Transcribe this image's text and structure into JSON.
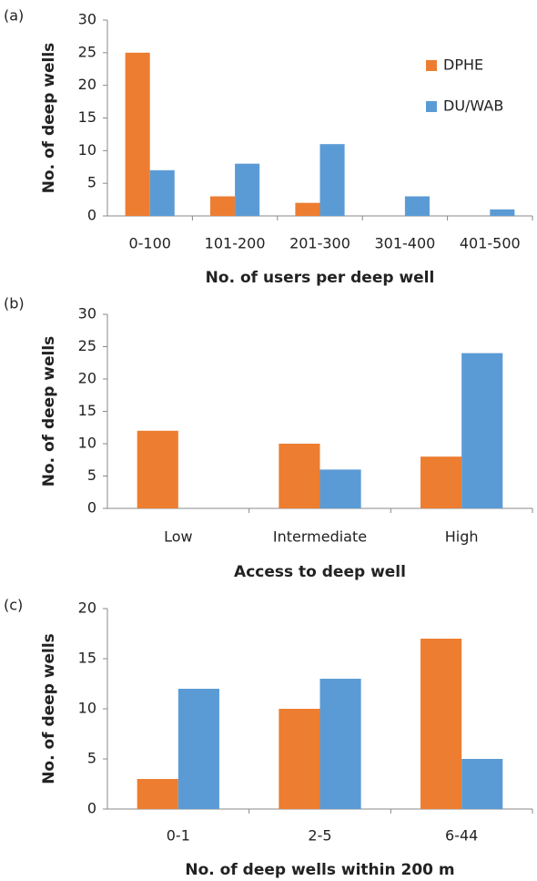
{
  "chart_data": [
    {
      "type": "bar",
      "panel_label": "(a)",
      "x_label": "No. of users per deep well",
      "y_label": "No. of deep wells",
      "categories": [
        "0-100",
        "101-200",
        "201-300",
        "301-400",
        "401-500"
      ],
      "series": [
        {
          "name": "DPHE",
          "color": "#ed7d31",
          "values": [
            25,
            3,
            2,
            0,
            0
          ]
        },
        {
          "name": "DU/WAB",
          "color": "#5b9bd5",
          "values": [
            7,
            8,
            11,
            3,
            1
          ]
        }
      ],
      "ylim": [
        0,
        30
      ],
      "yticks": [
        0,
        5,
        10,
        15,
        20,
        25,
        30
      ],
      "legend": "upper right"
    },
    {
      "type": "bar",
      "panel_label": "(b)",
      "x_label": "Access to deep well",
      "y_label": "No. of deep wells",
      "categories": [
        "Low",
        "Intermediate",
        "High"
      ],
      "series": [
        {
          "color": "#ed7d31",
          "values": [
            12,
            10,
            8
          ]
        },
        {
          "color": "#5b9bd5",
          "values": [
            0,
            6,
            24
          ]
        }
      ],
      "ylim": [
        0,
        30
      ],
      "yticks": [
        0,
        5,
        10,
        15,
        20,
        25,
        30
      ]
    },
    {
      "type": "bar",
      "panel_label": "(c)",
      "x_label": "No. of deep wells within 200 m",
      "y_label": "No. of deep wells",
      "categories": [
        "0-1",
        "2-5",
        "6-44"
      ],
      "series": [
        {
          "color": "#ed7d31",
          "values": [
            3,
            10,
            17
          ]
        },
        {
          "color": "#5b9bd5",
          "values": [
            12,
            13,
            5
          ]
        }
      ],
      "ylim": [
        0,
        20
      ],
      "yticks": [
        0,
        5,
        10,
        15,
        20
      ]
    }
  ]
}
